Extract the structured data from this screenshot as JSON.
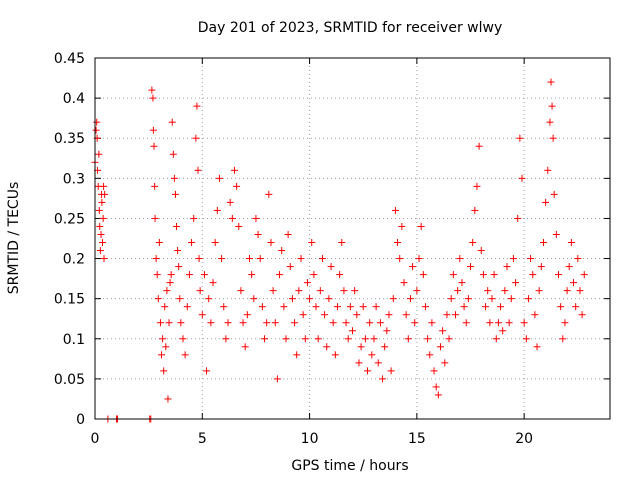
{
  "chart_data": {
    "type": "scatter",
    "title": "Day 201 of 2023, SRMTID for receiver wlwy",
    "xlabel": "GPS time / hours",
    "ylabel": "SRMTID / TECUs",
    "xlim": [
      0,
      24
    ],
    "ylim": [
      0,
      0.45
    ],
    "x_ticks": [
      0,
      5,
      10,
      15,
      20
    ],
    "x_tick_labels": [
      "0",
      "5",
      "10",
      "15",
      "20"
    ],
    "y_ticks": [
      0,
      0.05,
      0.1,
      0.15,
      0.2,
      0.25,
      0.3,
      0.35,
      0.4,
      0.45
    ],
    "y_tick_labels": [
      "0",
      "0.05",
      "0.1",
      "0.15",
      "0.2",
      "0.25",
      "0.3",
      "0.35",
      "0.4",
      "0.45"
    ],
    "grid": true,
    "marker": "+",
    "series": [
      {
        "name": "SRMTID",
        "color": "#ff0000",
        "points": [
          [
            0.0,
            0.32
          ],
          [
            0.05,
            0.36
          ],
          [
            0.08,
            0.37
          ],
          [
            0.1,
            0.35
          ],
          [
            0.12,
            0.31
          ],
          [
            0.15,
            0.29
          ],
          [
            0.18,
            0.33
          ],
          [
            0.2,
            0.26
          ],
          [
            0.22,
            0.24
          ],
          [
            0.25,
            0.21
          ],
          [
            0.28,
            0.23
          ],
          [
            0.3,
            0.28
          ],
          [
            0.32,
            0.27
          ],
          [
            0.35,
            0.22
          ],
          [
            0.38,
            0.25
          ],
          [
            0.4,
            0.29
          ],
          [
            0.42,
            0.2
          ],
          [
            0.45,
            0.28
          ],
          [
            0.6,
            0.0
          ],
          [
            1.0,
            0.0
          ],
          [
            1.05,
            0.0
          ],
          [
            2.55,
            0.0
          ],
          [
            2.6,
            0.0
          ],
          [
            2.65,
            0.41
          ],
          [
            2.7,
            0.4
          ],
          [
            2.72,
            0.36
          ],
          [
            2.75,
            0.34
          ],
          [
            2.78,
            0.29
          ],
          [
            2.8,
            0.25
          ],
          [
            2.85,
            0.2
          ],
          [
            2.9,
            0.18
          ],
          [
            2.95,
            0.15
          ],
          [
            3.0,
            0.22
          ],
          [
            3.05,
            0.12
          ],
          [
            3.1,
            0.08
          ],
          [
            3.15,
            0.1
          ],
          [
            3.2,
            0.06
          ],
          [
            3.25,
            0.14
          ],
          [
            3.3,
            0.09
          ],
          [
            3.35,
            0.16
          ],
          [
            3.4,
            0.025
          ],
          [
            3.45,
            0.12
          ],
          [
            3.5,
            0.17
          ],
          [
            3.55,
            0.18
          ],
          [
            3.6,
            0.37
          ],
          [
            3.65,
            0.33
          ],
          [
            3.7,
            0.3
          ],
          [
            3.75,
            0.28
          ],
          [
            3.8,
            0.24
          ],
          [
            3.85,
            0.21
          ],
          [
            3.9,
            0.19
          ],
          [
            3.95,
            0.15
          ],
          [
            4.0,
            0.12
          ],
          [
            4.1,
            0.1
          ],
          [
            4.2,
            0.08
          ],
          [
            4.3,
            0.14
          ],
          [
            4.4,
            0.18
          ],
          [
            4.5,
            0.22
          ],
          [
            4.6,
            0.25
          ],
          [
            4.7,
            0.35
          ],
          [
            4.75,
            0.39
          ],
          [
            4.8,
            0.31
          ],
          [
            4.85,
            0.2
          ],
          [
            4.9,
            0.16
          ],
          [
            5.0,
            0.13
          ],
          [
            5.1,
            0.18
          ],
          [
            5.2,
            0.06
          ],
          [
            5.3,
            0.15
          ],
          [
            5.4,
            0.12
          ],
          [
            5.5,
            0.17
          ],
          [
            5.6,
            0.22
          ],
          [
            5.7,
            0.26
          ],
          [
            5.8,
            0.3
          ],
          [
            5.9,
            0.2
          ],
          [
            6.0,
            0.14
          ],
          [
            6.1,
            0.1
          ],
          [
            6.2,
            0.12
          ],
          [
            6.3,
            0.27
          ],
          [
            6.4,
            0.25
          ],
          [
            6.5,
            0.31
          ],
          [
            6.6,
            0.29
          ],
          [
            6.7,
            0.24
          ],
          [
            6.8,
            0.16
          ],
          [
            6.9,
            0.12
          ],
          [
            7.0,
            0.09
          ],
          [
            7.1,
            0.13
          ],
          [
            7.2,
            0.2
          ],
          [
            7.3,
            0.18
          ],
          [
            7.4,
            0.15
          ],
          [
            7.5,
            0.25
          ],
          [
            7.6,
            0.23
          ],
          [
            7.7,
            0.2
          ],
          [
            7.8,
            0.14
          ],
          [
            7.9,
            0.1
          ],
          [
            8.0,
            0.12
          ],
          [
            8.1,
            0.28
          ],
          [
            8.2,
            0.22
          ],
          [
            8.3,
            0.16
          ],
          [
            8.4,
            0.12
          ],
          [
            8.5,
            0.05
          ],
          [
            8.6,
            0.18
          ],
          [
            8.7,
            0.21
          ],
          [
            8.8,
            0.14
          ],
          [
            8.9,
            0.1
          ],
          [
            9.0,
            0.23
          ],
          [
            9.1,
            0.19
          ],
          [
            9.2,
            0.15
          ],
          [
            9.3,
            0.12
          ],
          [
            9.4,
            0.08
          ],
          [
            9.5,
            0.16
          ],
          [
            9.6,
            0.2
          ],
          [
            9.7,
            0.13
          ],
          [
            9.8,
            0.1
          ],
          [
            9.9,
            0.17
          ],
          [
            10.0,
            0.15
          ],
          [
            10.1,
            0.22
          ],
          [
            10.2,
            0.18
          ],
          [
            10.3,
            0.14
          ],
          [
            10.4,
            0.1
          ],
          [
            10.5,
            0.16
          ],
          [
            10.6,
            0.2
          ],
          [
            10.7,
            0.13
          ],
          [
            10.8,
            0.09
          ],
          [
            10.9,
            0.15
          ],
          [
            11.0,
            0.19
          ],
          [
            11.1,
            0.12
          ],
          [
            11.2,
            0.08
          ],
          [
            11.3,
            0.14
          ],
          [
            11.4,
            0.18
          ],
          [
            11.5,
            0.22
          ],
          [
            11.6,
            0.16
          ],
          [
            11.7,
            0.12
          ],
          [
            11.8,
            0.1
          ],
          [
            11.9,
            0.14
          ],
          [
            12.0,
            0.11
          ],
          [
            12.1,
            0.16
          ],
          [
            12.2,
            0.13
          ],
          [
            12.3,
            0.07
          ],
          [
            12.4,
            0.09
          ],
          [
            12.5,
            0.14
          ],
          [
            12.6,
            0.1
          ],
          [
            12.7,
            0.06
          ],
          [
            12.8,
            0.12
          ],
          [
            12.9,
            0.08
          ],
          [
            13.0,
            0.1
          ],
          [
            13.1,
            0.14
          ],
          [
            13.2,
            0.07
          ],
          [
            13.3,
            0.12
          ],
          [
            13.4,
            0.05
          ],
          [
            13.5,
            0.09
          ],
          [
            13.6,
            0.11
          ],
          [
            13.7,
            0.13
          ],
          [
            13.8,
            0.06
          ],
          [
            13.9,
            0.15
          ],
          [
            14.0,
            0.26
          ],
          [
            14.1,
            0.22
          ],
          [
            14.2,
            0.2
          ],
          [
            14.3,
            0.24
          ],
          [
            14.4,
            0.17
          ],
          [
            14.5,
            0.13
          ],
          [
            14.6,
            0.1
          ],
          [
            14.7,
            0.15
          ],
          [
            14.8,
            0.19
          ],
          [
            14.9,
            0.12
          ],
          [
            15.0,
            0.16
          ],
          [
            15.1,
            0.2
          ],
          [
            15.2,
            0.24
          ],
          [
            15.3,
            0.18
          ],
          [
            15.4,
            0.14
          ],
          [
            15.5,
            0.1
          ],
          [
            15.6,
            0.08
          ],
          [
            15.7,
            0.12
          ],
          [
            15.8,
            0.06
          ],
          [
            15.9,
            0.04
          ],
          [
            16.0,
            0.03
          ],
          [
            16.1,
            0.09
          ],
          [
            16.2,
            0.11
          ],
          [
            16.3,
            0.07
          ],
          [
            16.4,
            0.13
          ],
          [
            16.5,
            0.1
          ],
          [
            16.6,
            0.15
          ],
          [
            16.7,
            0.18
          ],
          [
            16.8,
            0.13
          ],
          [
            16.9,
            0.16
          ],
          [
            17.0,
            0.2
          ],
          [
            17.1,
            0.17
          ],
          [
            17.2,
            0.14
          ],
          [
            17.3,
            0.12
          ],
          [
            17.4,
            0.15
          ],
          [
            17.5,
            0.19
          ],
          [
            17.6,
            0.22
          ],
          [
            17.7,
            0.26
          ],
          [
            17.8,
            0.29
          ],
          [
            17.9,
            0.34
          ],
          [
            18.0,
            0.21
          ],
          [
            18.1,
            0.18
          ],
          [
            18.2,
            0.14
          ],
          [
            18.3,
            0.16
          ],
          [
            18.4,
            0.12
          ],
          [
            18.5,
            0.15
          ],
          [
            18.6,
            0.18
          ],
          [
            18.7,
            0.1
          ],
          [
            18.8,
            0.12
          ],
          [
            18.9,
            0.14
          ],
          [
            19.0,
            0.11
          ],
          [
            19.1,
            0.16
          ],
          [
            19.2,
            0.19
          ],
          [
            19.3,
            0.12
          ],
          [
            19.4,
            0.15
          ],
          [
            19.5,
            0.2
          ],
          [
            19.6,
            0.17
          ],
          [
            19.7,
            0.25
          ],
          [
            19.8,
            0.35
          ],
          [
            19.9,
            0.3
          ],
          [
            20.0,
            0.12
          ],
          [
            20.1,
            0.1
          ],
          [
            20.2,
            0.15
          ],
          [
            20.3,
            0.2
          ],
          [
            20.4,
            0.18
          ],
          [
            20.5,
            0.13
          ],
          [
            20.6,
            0.09
          ],
          [
            20.7,
            0.16
          ],
          [
            20.8,
            0.19
          ],
          [
            20.9,
            0.22
          ],
          [
            21.0,
            0.27
          ],
          [
            21.1,
            0.31
          ],
          [
            21.2,
            0.37
          ],
          [
            21.25,
            0.42
          ],
          [
            21.3,
            0.39
          ],
          [
            21.35,
            0.35
          ],
          [
            21.4,
            0.28
          ],
          [
            21.5,
            0.23
          ],
          [
            21.6,
            0.18
          ],
          [
            21.7,
            0.14
          ],
          [
            21.8,
            0.1
          ],
          [
            21.9,
            0.12
          ],
          [
            22.0,
            0.16
          ],
          [
            22.1,
            0.19
          ],
          [
            22.2,
            0.22
          ],
          [
            22.3,
            0.17
          ],
          [
            22.4,
            0.14
          ],
          [
            22.5,
            0.2
          ],
          [
            22.6,
            0.16
          ],
          [
            22.7,
            0.13
          ],
          [
            22.8,
            0.18
          ]
        ]
      }
    ]
  }
}
